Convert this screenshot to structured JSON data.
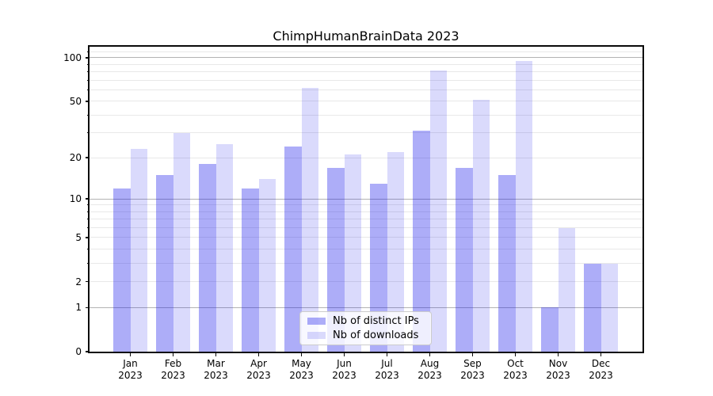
{
  "chart_data": {
    "type": "bar",
    "title": "ChimpHumanBrainData 2023",
    "categories": [
      "Jan",
      "Feb",
      "Mar",
      "Apr",
      "May",
      "Jun",
      "Jul",
      "Aug",
      "Sep",
      "Oct",
      "Nov",
      "Dec"
    ],
    "xtick_year": "2023",
    "series": [
      {
        "name": "Nb of distinct IPs",
        "color": "rgba(20,20,235,0.35)",
        "values": [
          12,
          15,
          18,
          12,
          24,
          17,
          13,
          31,
          17,
          15,
          1,
          3
        ]
      },
      {
        "name": "Nb of downloads",
        "color": "rgba(20,20,235,0.155)",
        "values": [
          23,
          30,
          25,
          14,
          62,
          21,
          22,
          82,
          51,
          95,
          6,
          3
        ]
      }
    ],
    "yscale": "log1p",
    "ylim": [
      0,
      119
    ],
    "yticks_labeled": [
      0,
      1,
      2,
      5,
      10,
      20,
      50,
      100
    ],
    "ygrid_major": [
      1,
      10,
      100
    ],
    "ygrid_minor": [
      2,
      3,
      4,
      5,
      6,
      7,
      8,
      9,
      20,
      30,
      40,
      50,
      60,
      70,
      80,
      90,
      110
    ],
    "grid": true,
    "legend_position": "lower center",
    "colors": {
      "grid_major": "#b3b3b3",
      "grid_minor": "#e8e8e8",
      "axis": "#0a0a0a",
      "background": "#ffffff"
    }
  }
}
